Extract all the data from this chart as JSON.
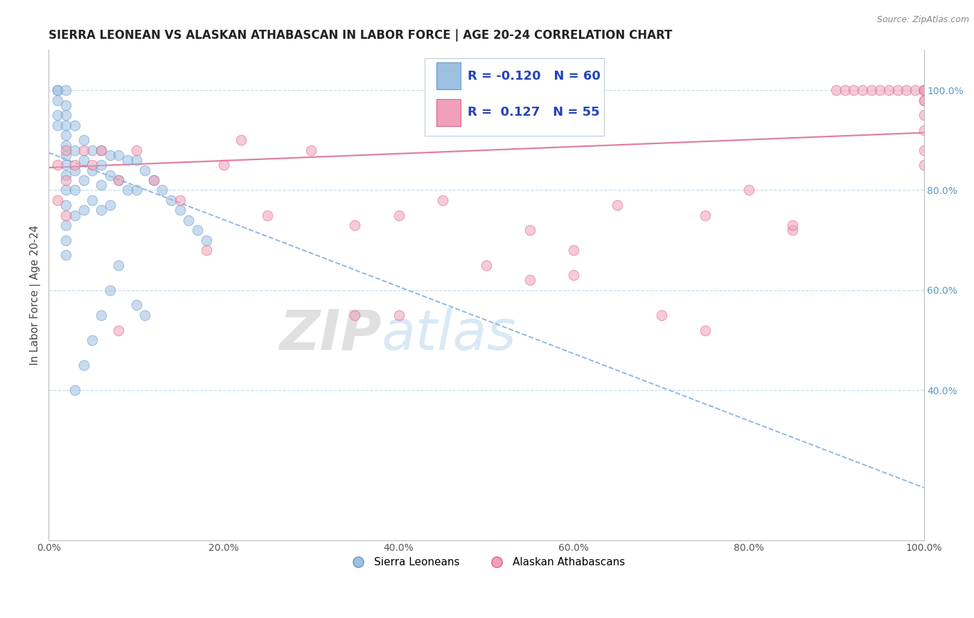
{
  "title": "SIERRA LEONEAN VS ALASKAN ATHABASCAN IN LABOR FORCE | AGE 20-24 CORRELATION CHART",
  "source_text": "Source: ZipAtlas.com",
  "ylabel": "In Labor Force | Age 20-24",
  "watermark_zip": "ZIP",
  "watermark_atlas": "atlas",
  "xlim": [
    0,
    1
  ],
  "ylim": [
    0.1,
    1.08
  ],
  "xticks": [
    0.0,
    0.2,
    0.4,
    0.6,
    0.8,
    1.0
  ],
  "xticklabels": [
    "0.0%",
    "20.0%",
    "40.0%",
    "60.0%",
    "80.0%",
    "100.0%"
  ],
  "yticks_right": [
    0.4,
    0.6,
    0.8,
    1.0
  ],
  "yticklabels_right": [
    "40.0%",
    "60.0%",
    "80.0%",
    "100.0%"
  ],
  "blue_color": "#9dbfe0",
  "pink_color": "#f0a0b8",
  "blue_edge_color": "#6699cc",
  "pink_edge_color": "#e06080",
  "blue_trend_color": "#7aaadd",
  "pink_trend_color": "#e07090",
  "legend_text_color": "#2244bb",
  "right_tick_color": "#5599cc",
  "grid_color": "#c8dce8",
  "title_color": "#222222",
  "source_color": "#888888",
  "ylabel_color": "#444444",
  "background_color": "#ffffff",
  "blue_scatter_x": [
    0.01,
    0.01,
    0.01,
    0.01,
    0.01,
    0.02,
    0.02,
    0.02,
    0.02,
    0.02,
    0.02,
    0.02,
    0.02,
    0.02,
    0.02,
    0.02,
    0.02,
    0.02,
    0.02,
    0.03,
    0.03,
    0.03,
    0.03,
    0.03,
    0.04,
    0.04,
    0.04,
    0.04,
    0.05,
    0.05,
    0.05,
    0.06,
    0.06,
    0.06,
    0.06,
    0.07,
    0.07,
    0.07,
    0.08,
    0.08,
    0.09,
    0.09,
    0.1,
    0.1,
    0.11,
    0.12,
    0.13,
    0.14,
    0.15,
    0.16,
    0.17,
    0.18,
    0.1,
    0.11,
    0.08,
    0.07,
    0.06,
    0.05,
    0.04,
    0.03
  ],
  "blue_scatter_y": [
    1.0,
    1.0,
    0.98,
    0.95,
    0.93,
    1.0,
    0.97,
    0.95,
    0.93,
    0.91,
    0.89,
    0.87,
    0.85,
    0.83,
    0.8,
    0.77,
    0.73,
    0.7,
    0.67,
    0.93,
    0.88,
    0.84,
    0.8,
    0.75,
    0.9,
    0.86,
    0.82,
    0.76,
    0.88,
    0.84,
    0.78,
    0.88,
    0.85,
    0.81,
    0.76,
    0.87,
    0.83,
    0.77,
    0.87,
    0.82,
    0.86,
    0.8,
    0.86,
    0.8,
    0.84,
    0.82,
    0.8,
    0.78,
    0.76,
    0.74,
    0.72,
    0.7,
    0.57,
    0.55,
    0.65,
    0.6,
    0.55,
    0.5,
    0.45,
    0.4
  ],
  "pink_scatter_x": [
    0.01,
    0.01,
    0.02,
    0.02,
    0.02,
    0.03,
    0.04,
    0.05,
    0.06,
    0.08,
    0.1,
    0.12,
    0.15,
    0.2,
    0.25,
    0.3,
    0.35,
    0.4,
    0.45,
    0.5,
    0.55,
    0.6,
    0.65,
    0.7,
    0.75,
    0.8,
    0.85,
    0.9,
    0.91,
    0.92,
    0.93,
    0.94,
    0.95,
    0.96,
    0.97,
    0.98,
    0.99,
    1.0,
    1.0,
    1.0,
    1.0,
    1.0,
    1.0,
    1.0,
    1.0,
    1.0,
    0.55,
    0.4,
    0.75,
    0.85,
    0.6,
    0.35,
    0.22,
    0.18,
    0.08
  ],
  "pink_scatter_y": [
    0.85,
    0.78,
    0.88,
    0.82,
    0.75,
    0.85,
    0.88,
    0.85,
    0.88,
    0.82,
    0.88,
    0.82,
    0.78,
    0.85,
    0.75,
    0.88,
    0.73,
    0.75,
    0.78,
    0.65,
    0.72,
    0.63,
    0.77,
    0.55,
    0.75,
    0.8,
    0.72,
    1.0,
    1.0,
    1.0,
    1.0,
    1.0,
    1.0,
    1.0,
    1.0,
    1.0,
    1.0,
    1.0,
    1.0,
    1.0,
    0.98,
    0.98,
    0.95,
    0.88,
    0.92,
    0.85,
    0.62,
    0.55,
    0.52,
    0.73,
    0.68,
    0.55,
    0.9,
    0.68,
    0.52
  ],
  "blue_trend_y_start": 0.875,
  "blue_trend_y_end": 0.205,
  "pink_trend_y_start": 0.845,
  "pink_trend_y_end": 0.915,
  "title_fontsize": 12,
  "source_fontsize": 9,
  "tick_fontsize": 10,
  "ylabel_fontsize": 11,
  "legend_fontsize": 13,
  "scatter_size": 110,
  "scatter_alpha": 0.55
}
